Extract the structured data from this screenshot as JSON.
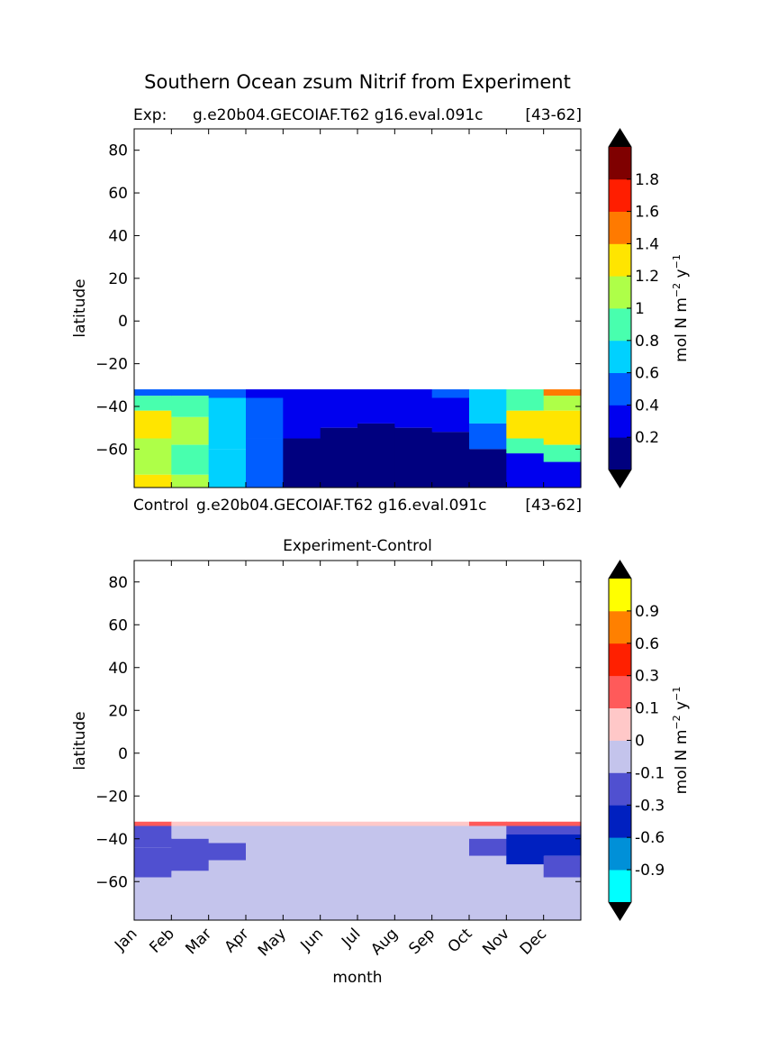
{
  "figure": {
    "title": "Southern Ocean zsum Nitrif from Experiment",
    "exp_label": "Exp:",
    "exp_case": "g.e20b04.GECOIAF.T62 g16.eval.091c",
    "exp_years": "[43-62]",
    "control_label": "Control",
    "control_case": "g.e20b04.GECOIAF.T62 g16.eval.091c",
    "control_years": "[43-62]"
  },
  "chart_data": [
    {
      "type": "heatmap",
      "title": "",
      "xlabel": "",
      "ylabel": "latitude",
      "ylim": [
        -78,
        90
      ],
      "yticks": [
        "80",
        "60",
        "40",
        "20",
        "0",
        "−20",
        "−40",
        "−60"
      ],
      "x_categories": [
        "Jan",
        "Feb",
        "Mar",
        "Apr",
        "May",
        "Jun",
        "Jul",
        "Aug",
        "Sep",
        "Oct",
        "Nov",
        "Dec"
      ],
      "colorbar": {
        "label": "mol N m",
        "label_exp1": "−2",
        "label_mid": " y",
        "label_exp2": "−1",
        "levels": [
          0,
          0.2,
          0.4,
          0.6,
          0.8,
          1.0,
          1.2,
          1.4,
          1.6,
          1.8,
          2.0
        ],
        "tick_labels": [
          "0.2",
          "0.4",
          "0.6",
          "0.8",
          "1",
          "1.2",
          "1.4",
          "1.6",
          "1.8"
        ],
        "colors": [
          "#00007f",
          "#0000ef",
          "#005dff",
          "#00d1ff",
          "#48ffae",
          "#aeff48",
          "#ffe500",
          "#ff7a00",
          "#ff1e00",
          "#7f0000"
        ],
        "extend_color": "#000000"
      },
      "field": {
        "lat_top": -32,
        "lat_bottom": -78,
        "description_free": true,
        "columns": [
          {
            "month": 0,
            "bands": [
              [
                -32,
                -35,
                0.5
              ],
              [
                -35,
                -42,
                0.9
              ],
              [
                -42,
                -55,
                1.3
              ],
              [
                -55,
                -72,
                1.1
              ],
              [
                -72,
                -78,
                1.3
              ]
            ]
          },
          {
            "month": 1,
            "bands": [
              [
                -32,
                -35,
                0.5
              ],
              [
                -35,
                -45,
                0.9
              ],
              [
                -45,
                -58,
                1.1
              ],
              [
                -58,
                -72,
                0.9
              ],
              [
                -72,
                -78,
                1.1
              ]
            ]
          },
          {
            "month": 2,
            "bands": [
              [
                -32,
                -36,
                0.5
              ],
              [
                -36,
                -60,
                0.7
              ],
              [
                -60,
                -78,
                0.7
              ]
            ]
          },
          {
            "month": 3,
            "bands": [
              [
                -32,
                -36,
                0.3
              ],
              [
                -36,
                -55,
                0.5
              ],
              [
                -55,
                -78,
                0.5
              ]
            ]
          },
          {
            "month": 4,
            "bands": [
              [
                -32,
                -36,
                0.3
              ],
              [
                -36,
                -55,
                0.3
              ],
              [
                -55,
                -78,
                0.1
              ]
            ]
          },
          {
            "month": 5,
            "bands": [
              [
                -32,
                -36,
                0.3
              ],
              [
                -36,
                -50,
                0.3
              ],
              [
                -50,
                -78,
                0.1
              ]
            ]
          },
          {
            "month": 6,
            "bands": [
              [
                -32,
                -36,
                0.3
              ],
              [
                -36,
                -48,
                0.3
              ],
              [
                -48,
                -78,
                0.1
              ]
            ]
          },
          {
            "month": 7,
            "bands": [
              [
                -32,
                -36,
                0.3
              ],
              [
                -36,
                -50,
                0.3
              ],
              [
                -50,
                -78,
                0.1
              ]
            ]
          },
          {
            "month": 8,
            "bands": [
              [
                -32,
                -36,
                0.5
              ],
              [
                -36,
                -52,
                0.3
              ],
              [
                -52,
                -78,
                0.1
              ]
            ]
          },
          {
            "month": 9,
            "bands": [
              [
                -32,
                -36,
                0.7
              ],
              [
                -36,
                -48,
                0.7
              ],
              [
                -48,
                -60,
                0.5
              ],
              [
                -60,
                -78,
                0.1
              ]
            ]
          },
          {
            "month": 10,
            "bands": [
              [
                -32,
                -36,
                0.9
              ],
              [
                -36,
                -42,
                0.9
              ],
              [
                -42,
                -55,
                1.3
              ],
              [
                -55,
                -62,
                0.9
              ],
              [
                -62,
                -78,
                0.3
              ]
            ]
          },
          {
            "month": 11,
            "bands": [
              [
                -32,
                -35,
                1.5
              ],
              [
                -35,
                -42,
                1.1
              ],
              [
                -42,
                -58,
                1.3
              ],
              [
                -58,
                -66,
                0.9
              ],
              [
                -66,
                -78,
                0.3
              ]
            ]
          }
        ]
      }
    },
    {
      "type": "heatmap",
      "title": "Experiment-Control",
      "xlabel": "month",
      "ylabel": "latitude",
      "ylim": [
        -78,
        90
      ],
      "yticks": [
        "80",
        "60",
        "40",
        "20",
        "0",
        "−20",
        "−40",
        "−60"
      ],
      "x_categories": [
        "Jan",
        "Feb",
        "Mar",
        "Apr",
        "May",
        "Jun",
        "Jul",
        "Aug",
        "Sep",
        "Oct",
        "Nov",
        "Dec"
      ],
      "colorbar": {
        "label": "mol N m",
        "label_exp1": "−2",
        "label_mid": " y",
        "label_exp2": "−1",
        "levels": [
          -1.2,
          -0.9,
          -0.6,
          -0.3,
          -0.1,
          0,
          0.1,
          0.3,
          0.6,
          0.9,
          1.2
        ],
        "tick_labels": [
          "-0.9",
          "-0.6",
          "-0.3",
          "-0.1",
          "0",
          "0.1",
          "0.3",
          "0.6",
          "0.9"
        ],
        "colors": [
          "#00ffff",
          "#0090d8",
          "#0020c0",
          "#5050d0",
          "#c4c4ec",
          "#ffc8c8",
          "#ff5a5a",
          "#ff2000",
          "#ff8000",
          "#ffff00"
        ],
        "extend_color": "#000000"
      },
      "field": {
        "lat_top": -32,
        "lat_bottom": -78,
        "columns": [
          {
            "month": 0,
            "bands": [
              [
                -32,
                -34,
                0.2
              ],
              [
                -34,
                -44,
                -0.2
              ],
              [
                -44,
                -58,
                -0.2
              ],
              [
                -58,
                -78,
                -0.05
              ]
            ]
          },
          {
            "month": 1,
            "bands": [
              [
                -32,
                -34,
                0.05
              ],
              [
                -34,
                -40,
                -0.05
              ],
              [
                -40,
                -55,
                -0.2
              ],
              [
                -55,
                -78,
                -0.05
              ]
            ]
          },
          {
            "month": 2,
            "bands": [
              [
                -32,
                -34,
                0.05
              ],
              [
                -34,
                -42,
                -0.05
              ],
              [
                -42,
                -50,
                -0.2
              ],
              [
                -50,
                -78,
                -0.05
              ]
            ]
          },
          {
            "month": 3,
            "bands": [
              [
                -32,
                -34,
                0.05
              ],
              [
                -34,
                -78,
                -0.05
              ]
            ]
          },
          {
            "month": 4,
            "bands": [
              [
                -32,
                -34,
                0.05
              ],
              [
                -34,
                -78,
                -0.05
              ]
            ]
          },
          {
            "month": 5,
            "bands": [
              [
                -32,
                -34,
                0.05
              ],
              [
                -34,
                -78,
                -0.05
              ]
            ]
          },
          {
            "month": 6,
            "bands": [
              [
                -32,
                -34,
                0.05
              ],
              [
                -34,
                -78,
                -0.05
              ]
            ]
          },
          {
            "month": 7,
            "bands": [
              [
                -32,
                -34,
                0.05
              ],
              [
                -34,
                -78,
                -0.05
              ]
            ]
          },
          {
            "month": 8,
            "bands": [
              [
                -32,
                -34,
                0.05
              ],
              [
                -34,
                -78,
                -0.05
              ]
            ]
          },
          {
            "month": 9,
            "bands": [
              [
                -32,
                -34,
                0.2
              ],
              [
                -34,
                -40,
                -0.05
              ],
              [
                -40,
                -48,
                -0.2
              ],
              [
                -48,
                -78,
                -0.05
              ]
            ]
          },
          {
            "month": 10,
            "bands": [
              [
                -32,
                -34,
                0.2
              ],
              [
                -34,
                -38,
                -0.2
              ],
              [
                -38,
                -52,
                -0.4
              ],
              [
                -52,
                -78,
                -0.05
              ]
            ]
          },
          {
            "month": 11,
            "bands": [
              [
                -32,
                -34,
                0.2
              ],
              [
                -34,
                -38,
                -0.2
              ],
              [
                -38,
                -48,
                -0.4
              ],
              [
                -48,
                -58,
                -0.2
              ],
              [
                -58,
                -78,
                -0.05
              ]
            ]
          }
        ]
      }
    }
  ]
}
